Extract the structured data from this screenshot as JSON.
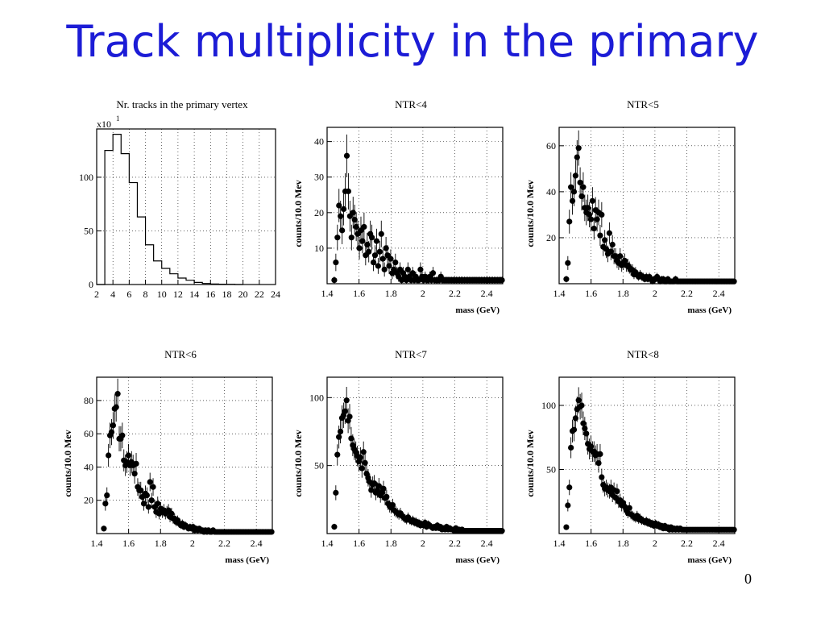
{
  "slide": {
    "title": "Track multiplicity in the primary",
    "page_number": "0"
  },
  "chart_data": [
    {
      "type": "histogram",
      "title": "Nr. tracks in the primary vertex",
      "exponent_label": "x10",
      "exponent_power": "1",
      "xlabel": "",
      "ylabel": "",
      "xlim": [
        2,
        24
      ],
      "ylim": [
        0,
        145
      ],
      "x_ticks": [
        2,
        4,
        6,
        8,
        10,
        12,
        14,
        16,
        18,
        20,
        22,
        24
      ],
      "y_ticks": [
        0,
        50,
        100
      ],
      "bin_edges": [
        2,
        3,
        4,
        5,
        6,
        7,
        8,
        9,
        10,
        11,
        12,
        13,
        14,
        15,
        16,
        17,
        18,
        19,
        20
      ],
      "values": [
        0,
        125,
        140,
        122,
        95,
        63,
        37,
        22,
        15,
        10,
        6,
        4,
        2,
        1,
        0.5,
        0.3,
        0.2,
        0
      ]
    },
    {
      "type": "scatter",
      "title": "NTR<4",
      "xlabel": "mass (GeV)",
      "ylabel": "counts/10.0 Mev",
      "xlim": [
        1.4,
        2.5
      ],
      "ylim": [
        0,
        44
      ],
      "x_ticks": [
        1.4,
        1.6,
        1.8,
        2,
        2.2,
        2.4
      ],
      "x_tick_labels": [
        "1.4",
        "1.6",
        "1.8",
        "2",
        "2.2",
        "2.4"
      ],
      "y_ticks": [
        10,
        20,
        30,
        40
      ],
      "peak": 36,
      "values": [
        1,
        6,
        13,
        22,
        19,
        15,
        21,
        26,
        36,
        26,
        19,
        13,
        20,
        18,
        16,
        14,
        10,
        15,
        12,
        16,
        8,
        11,
        9,
        14,
        13,
        6,
        8,
        12,
        5,
        9,
        14,
        7,
        4,
        10,
        8,
        5,
        7,
        3,
        4,
        6,
        3,
        2,
        4,
        1,
        3,
        2,
        1,
        4,
        2,
        1,
        3,
        1,
        2,
        1,
        1,
        4,
        2,
        1,
        2,
        1,
        1,
        2,
        1,
        3,
        1,
        1,
        1,
        1,
        2,
        1,
        1,
        1,
        1,
        1,
        1,
        1,
        1,
        1,
        1,
        1,
        1,
        1,
        1,
        1,
        1,
        1,
        1,
        1,
        1,
        1,
        1,
        1,
        1,
        1,
        1,
        1,
        1,
        1,
        1,
        1,
        1,
        1,
        1,
        1,
        1,
        1,
        1,
        1
      ]
    },
    {
      "type": "scatter",
      "title": "NTR<5",
      "xlabel": "mass (GeV)",
      "ylabel": "counts/10.0 Mev",
      "xlim": [
        1.4,
        2.5
      ],
      "ylim": [
        0,
        68
      ],
      "x_ticks": [
        1.4,
        1.6,
        1.8,
        2,
        2.2,
        2.4
      ],
      "x_tick_labels": [
        "1.4",
        "1.6",
        "1.8",
        "2",
        "2.2",
        "2.4"
      ],
      "y_ticks": [
        20,
        40,
        60
      ],
      "peak": 59,
      "values": [
        2,
        9,
        27,
        42,
        36,
        40,
        47,
        55,
        59,
        44,
        38,
        42,
        33,
        31,
        33,
        30,
        28,
        36,
        24,
        32,
        28,
        31,
        21,
        30,
        16,
        19,
        15,
        13,
        22,
        14,
        17,
        12,
        12,
        10,
        9,
        12,
        8,
        9,
        10,
        8,
        8,
        7,
        6,
        6,
        4,
        5,
        4,
        3,
        4,
        3,
        3,
        2,
        3,
        2,
        3,
        2,
        1,
        2,
        2,
        3,
        2,
        1,
        2,
        2,
        1,
        1,
        2,
        1,
        1,
        1,
        1,
        2,
        1,
        1,
        1,
        1,
        1,
        1,
        1,
        1,
        1,
        1,
        1,
        1,
        1,
        1,
        1,
        1,
        1,
        1,
        1,
        1,
        1,
        1,
        1,
        1,
        1,
        1,
        1,
        1,
        1,
        1,
        1,
        1,
        1,
        1,
        1,
        1,
        1,
        1
      ]
    },
    {
      "type": "scatter",
      "title": "NTR<6",
      "xlabel": "mass (GeV)",
      "ylabel": "counts/10.0 Mev",
      "xlim": [
        1.4,
        2.5
      ],
      "ylim": [
        0,
        94
      ],
      "x_ticks": [
        1.4,
        1.6,
        1.8,
        2,
        2.2,
        2.4
      ],
      "x_tick_labels": [
        "1.4",
        "1.6",
        "1.8",
        "2",
        "2.2",
        "2.4"
      ],
      "y_ticks": [
        20,
        40,
        60,
        80
      ],
      "peak": 84,
      "values": [
        3,
        18,
        23,
        47,
        59,
        61,
        65,
        75,
        76,
        84,
        57,
        57,
        59,
        44,
        41,
        43,
        47,
        41,
        43,
        41,
        36,
        42,
        28,
        26,
        26,
        22,
        18,
        24,
        23,
        16,
        31,
        20,
        28,
        16,
        13,
        18,
        12,
        15,
        13,
        14,
        12,
        13,
        14,
        10,
        12,
        9,
        9,
        7,
        8,
        6,
        5,
        6,
        4,
        5,
        4,
        3,
        4,
        3,
        4,
        2,
        3,
        2,
        3,
        2,
        2,
        1,
        2,
        1,
        2,
        1,
        1,
        2,
        1,
        1,
        1,
        1,
        1,
        1,
        1,
        1,
        1,
        1,
        1,
        1,
        1,
        1,
        1,
        1,
        1,
        1,
        1,
        1,
        1,
        1,
        1,
        1,
        1,
        1,
        1,
        1,
        1,
        1,
        1,
        1,
        1,
        1,
        1,
        1,
        1,
        1
      ]
    },
    {
      "type": "scatter",
      "title": "NTR<7",
      "xlabel": "mass (GeV)",
      "ylabel": "counts/10.0 Mev",
      "xlim": [
        1.4,
        2.5
      ],
      "ylim": [
        0,
        115
      ],
      "x_ticks": [
        1.4,
        1.6,
        1.8,
        2,
        2.2,
        2.4
      ],
      "x_tick_labels": [
        "1.4",
        "1.6",
        "1.8",
        "2",
        "2.2",
        "2.4"
      ],
      "y_ticks": [
        50,
        100
      ],
      "peak": 98,
      "values": [
        5,
        30,
        58,
        71,
        75,
        85,
        87,
        90,
        98,
        83,
        86,
        70,
        65,
        62,
        60,
        57,
        53,
        56,
        48,
        60,
        52,
        44,
        41,
        38,
        32,
        36,
        37,
        30,
        32,
        35,
        28,
        30,
        33,
        26,
        27,
        22,
        20,
        19,
        21,
        17,
        16,
        15,
        14,
        15,
        13,
        12,
        11,
        10,
        12,
        10,
        9,
        10,
        8,
        9,
        7,
        8,
        6,
        7,
        6,
        8,
        5,
        7,
        6,
        5,
        4,
        5,
        4,
        6,
        4,
        5,
        3,
        4,
        3,
        5,
        3,
        4,
        3,
        3,
        2,
        4,
        2,
        3,
        2,
        3,
        2,
        2,
        2,
        2,
        2,
        2,
        2,
        2,
        2,
        2,
        2,
        2,
        2,
        2,
        2,
        2,
        2,
        2,
        2,
        2,
        2,
        2,
        2,
        2,
        2,
        2
      ]
    },
    {
      "type": "scatter",
      "title": "NTR<8",
      "xlabel": "mass (GeV)",
      "ylabel": "counts/10.0 Mev",
      "xlim": [
        1.4,
        2.5
      ],
      "ylim": [
        0,
        122
      ],
      "x_ticks": [
        1.4,
        1.6,
        1.8,
        2,
        2.2,
        2.4
      ],
      "x_tick_labels": [
        "1.4",
        "1.6",
        "1.8",
        "2",
        "2.2",
        "2.4"
      ],
      "y_ticks": [
        50,
        100
      ],
      "peak": 104,
      "values": [
        5,
        22,
        36,
        67,
        80,
        81,
        90,
        97,
        104,
        99,
        100,
        86,
        82,
        78,
        70,
        66,
        68,
        64,
        64,
        61,
        62,
        55,
        62,
        44,
        38,
        35,
        36,
        34,
        33,
        36,
        30,
        34,
        28,
        33,
        25,
        26,
        22,
        24,
        21,
        18,
        16,
        20,
        15,
        14,
        13,
        12,
        14,
        11,
        12,
        10,
        10,
        9,
        10,
        8,
        9,
        7,
        8,
        6,
        8,
        6,
        7,
        5,
        6,
        4,
        6,
        4,
        5,
        3,
        5,
        3,
        4,
        3,
        4,
        3,
        4,
        3,
        3,
        3,
        3,
        3,
        3,
        3,
        3,
        3,
        3,
        3,
        3,
        3,
        3,
        3,
        3,
        3,
        3,
        3,
        3,
        3,
        3,
        3,
        3,
        3,
        3,
        3,
        3,
        3,
        3,
        3,
        3,
        3,
        3,
        3
      ]
    }
  ]
}
